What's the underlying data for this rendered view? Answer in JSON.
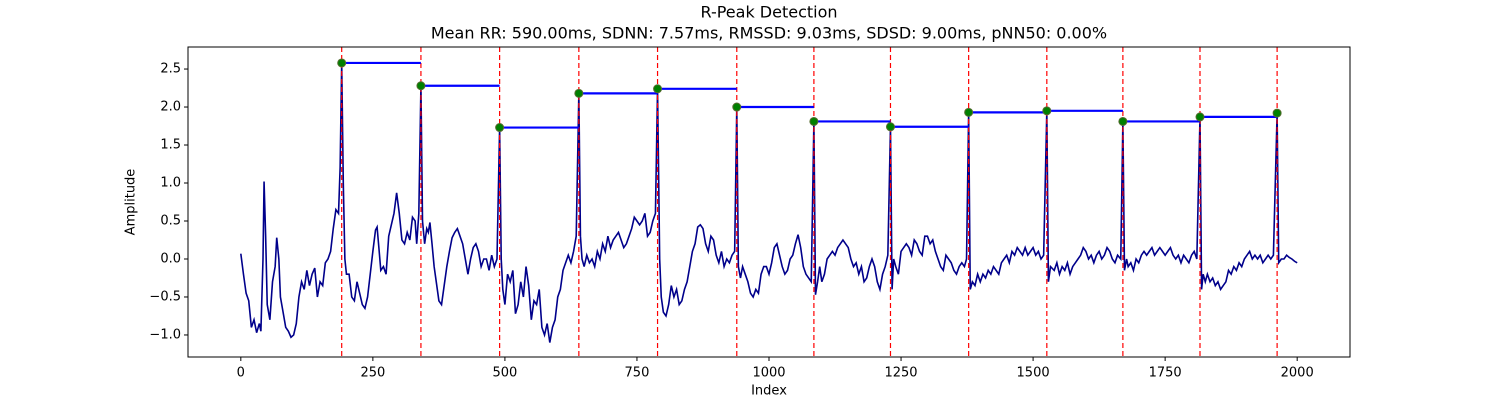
{
  "chart_data": {
    "type": "line",
    "title": "R-Peak Detection",
    "subtitle": "Mean RR: 590.00ms, SDNN: 7.57ms, RMSSD: 9.03ms, SDSD: 9.00ms, pNN50: 0.00%",
    "x_label": "Index",
    "y_label": "Amplitude",
    "xlim": [
      -100,
      2100
    ],
    "ylim": [
      -1.29,
      2.79
    ],
    "xticks": [
      0,
      250,
      500,
      750,
      1000,
      1250,
      1500,
      1750,
      2000
    ],
    "yticks": [
      {
        "value": -1,
        "label": "−1.0"
      },
      {
        "value": -0.5,
        "label": "−0.5"
      },
      {
        "value": 0,
        "label": "0.0"
      },
      0.5,
      {
        "value": 1,
        "label": "1.0"
      },
      1.5,
      {
        "value": 2,
        "label": "2.0"
      },
      2.5
    ],
    "signal": {
      "color": "#00008b",
      "x": [
        0,
        5,
        10,
        15,
        20,
        25,
        30,
        35,
        38,
        42,
        44,
        47,
        50,
        55,
        60,
        65,
        68,
        72,
        75,
        80,
        85,
        90,
        95,
        100,
        105,
        110,
        115,
        120,
        125,
        130,
        135,
        140,
        145,
        150,
        155,
        160,
        165,
        170,
        175,
        180,
        185,
        188,
        191,
        194,
        197,
        200,
        205,
        210,
        215,
        220,
        225,
        230,
        235,
        240,
        245,
        250,
        255,
        258,
        262,
        265,
        270,
        275,
        280,
        285,
        290,
        295,
        300,
        305,
        310,
        315,
        320,
        325,
        330,
        333,
        337,
        341,
        344,
        348,
        352,
        355,
        358,
        362,
        366,
        370,
        375,
        380,
        385,
        390,
        395,
        400,
        405,
        410,
        415,
        420,
        425,
        430,
        435,
        440,
        445,
        450,
        455,
        460,
        465,
        470,
        475,
        480,
        485,
        490,
        493,
        496,
        500,
        505,
        510,
        515,
        520,
        525,
        530,
        535,
        540,
        545,
        550,
        555,
        560,
        565,
        570,
        575,
        580,
        585,
        590,
        595,
        600,
        605,
        610,
        615,
        620,
        625,
        630,
        635,
        640,
        643,
        646,
        650,
        655,
        660,
        665,
        670,
        675,
        680,
        685,
        690,
        695,
        700,
        705,
        710,
        715,
        720,
        725,
        730,
        735,
        740,
        745,
        750,
        755,
        760,
        765,
        770,
        775,
        780,
        785,
        789,
        793,
        796,
        800,
        805,
        810,
        815,
        820,
        825,
        830,
        835,
        840,
        845,
        850,
        855,
        860,
        865,
        870,
        875,
        880,
        885,
        890,
        895,
        900,
        905,
        910,
        915,
        920,
        925,
        930,
        935,
        939,
        942,
        946,
        950,
        955,
        960,
        965,
        970,
        975,
        980,
        985,
        990,
        995,
        1000,
        1005,
        1010,
        1015,
        1020,
        1025,
        1030,
        1035,
        1040,
        1045,
        1050,
        1055,
        1060,
        1065,
        1070,
        1075,
        1080,
        1085,
        1088,
        1092,
        1096,
        1100,
        1105,
        1110,
        1115,
        1120,
        1125,
        1130,
        1135,
        1140,
        1145,
        1150,
        1155,
        1160,
        1165,
        1170,
        1175,
        1180,
        1185,
        1190,
        1195,
        1200,
        1205,
        1210,
        1215,
        1220,
        1225,
        1230,
        1233,
        1236,
        1240,
        1245,
        1250,
        1255,
        1260,
        1265,
        1270,
        1275,
        1280,
        1285,
        1290,
        1295,
        1300,
        1305,
        1310,
        1315,
        1320,
        1325,
        1330,
        1335,
        1340,
        1345,
        1350,
        1355,
        1360,
        1365,
        1370,
        1374,
        1378,
        1381,
        1385,
        1390,
        1395,
        1400,
        1405,
        1410,
        1415,
        1420,
        1425,
        1430,
        1435,
        1440,
        1445,
        1450,
        1455,
        1460,
        1465,
        1470,
        1475,
        1480,
        1485,
        1490,
        1495,
        1500,
        1505,
        1510,
        1515,
        1520,
        1526,
        1529,
        1533,
        1540,
        1545,
        1550,
        1555,
        1560,
        1565,
        1570,
        1575,
        1580,
        1585,
        1590,
        1595,
        1600,
        1605,
        1610,
        1615,
        1620,
        1625,
        1630,
        1635,
        1640,
        1645,
        1650,
        1655,
        1660,
        1666,
        1670,
        1673,
        1677,
        1680,
        1685,
        1690,
        1695,
        1700,
        1705,
        1710,
        1715,
        1720,
        1725,
        1730,
        1735,
        1740,
        1745,
        1750,
        1755,
        1760,
        1765,
        1770,
        1775,
        1780,
        1785,
        1790,
        1795,
        1800,
        1805,
        1810,
        1816,
        1819,
        1822,
        1826,
        1830,
        1835,
        1840,
        1845,
        1850,
        1855,
        1860,
        1865,
        1870,
        1875,
        1880,
        1885,
        1890,
        1895,
        1900,
        1905,
        1910,
        1915,
        1920,
        1925,
        1930,
        1935,
        1940,
        1945,
        1950,
        1955,
        1962,
        1965,
        1970,
        1975,
        1980,
        1985,
        1990,
        1995,
        2000
      ],
      "values": [
        0.07,
        -0.2,
        -0.45,
        -0.55,
        -0.9,
        -0.8,
        -0.97,
        -0.85,
        -0.95,
        0.0,
        1.02,
        0.3,
        -0.6,
        -0.8,
        -0.3,
        -0.1,
        0.28,
        0.0,
        -0.5,
        -0.7,
        -0.9,
        -0.95,
        -1.03,
        -1.0,
        -0.85,
        -0.5,
        -0.3,
        -0.4,
        -0.15,
        -0.35,
        -0.2,
        -0.12,
        -0.5,
        -0.3,
        -0.35,
        -0.05,
        0.0,
        0.1,
        0.4,
        0.65,
        0.6,
        1.2,
        2.58,
        1.0,
        0.0,
        -0.2,
        -0.2,
        -0.5,
        -0.55,
        -0.3,
        -0.45,
        -0.6,
        -0.65,
        -0.5,
        -0.2,
        0.1,
        0.38,
        0.42,
        0.1,
        -0.15,
        -0.1,
        -0.2,
        0.3,
        0.45,
        0.6,
        0.87,
        0.6,
        0.25,
        0.2,
        0.35,
        0.25,
        0.55,
        0.5,
        0.2,
        0.6,
        2.28,
        0.5,
        0.2,
        0.4,
        0.35,
        0.48,
        0.2,
        -0.1,
        -0.3,
        -0.55,
        -0.6,
        -0.35,
        -0.1,
        0.1,
        0.28,
        0.35,
        0.4,
        0.3,
        0.2,
        0.0,
        -0.2,
        0.0,
        0.15,
        0.2,
        0.1,
        -0.1,
        0.0,
        0.0,
        -0.15,
        0.05,
        -0.1,
        0.0,
        1.73,
        0.0,
        -0.4,
        -0.6,
        -0.2,
        -0.3,
        -0.15,
        -0.72,
        -0.6,
        -0.3,
        -0.5,
        -0.1,
        -0.35,
        -0.8,
        -0.55,
        -0.6,
        -0.4,
        -0.9,
        -1.0,
        -0.85,
        -1.1,
        -0.9,
        -0.8,
        -0.5,
        -0.4,
        -0.15,
        -0.05,
        0.05,
        -0.05,
        0.1,
        0.3,
        2.18,
        0.3,
        0.0,
        -0.1,
        0.05,
        -0.05,
        0.0,
        -0.1,
        0.1,
        0.0,
        0.2,
        0.1,
        0.3,
        0.15,
        0.25,
        0.3,
        0.35,
        0.25,
        0.15,
        0.2,
        0.3,
        0.4,
        0.55,
        0.5,
        0.45,
        0.5,
        0.6,
        0.3,
        0.35,
        0.5,
        0.6,
        2.24,
        0.0,
        -0.5,
        -0.7,
        -0.75,
        -0.6,
        -0.35,
        -0.5,
        -0.4,
        -0.6,
        -0.55,
        -0.4,
        -0.3,
        -0.1,
        0.1,
        0.2,
        0.42,
        0.45,
        0.4,
        0.2,
        0.1,
        0.3,
        0.25,
        0.05,
        -0.05,
        0.1,
        -0.1,
        0.0,
        -0.05,
        0.05,
        0.1,
        2.0,
        -0.1,
        -0.25,
        -0.1,
        -0.2,
        -0.3,
        -0.45,
        -0.5,
        -0.4,
        -0.45,
        -0.2,
        -0.1,
        -0.1,
        -0.2,
        -0.05,
        0.15,
        0.2,
        0.05,
        -0.1,
        -0.2,
        -0.15,
        0.0,
        0.05,
        0.2,
        0.32,
        0.15,
        -0.1,
        -0.2,
        -0.25,
        -0.3,
        1.81,
        -0.47,
        -0.3,
        -0.1,
        -0.3,
        -0.2,
        0.0,
        0.05,
        0.1,
        0.05,
        0.15,
        0.2,
        0.25,
        0.2,
        0.15,
        0.0,
        -0.1,
        -0.05,
        -0.2,
        -0.1,
        -0.3,
        -0.25,
        -0.1,
        0.0,
        -0.1,
        -0.3,
        -0.4,
        -0.2,
        -0.1,
        0.05,
        1.74,
        -0.4,
        0.0,
        -0.1,
        -0.2,
        0.1,
        0.15,
        0.2,
        0.15,
        0.05,
        0.25,
        0.2,
        0.1,
        0.05,
        0.3,
        0.3,
        0.2,
        0.25,
        0.1,
        0.0,
        -0.1,
        -0.15,
        0.05,
        0.0,
        -0.05,
        -0.15,
        -0.2,
        -0.1,
        -0.05,
        -0.1,
        0.0,
        1.93,
        -0.4,
        -0.3,
        -0.35,
        -0.2,
        -0.3,
        -0.2,
        -0.25,
        -0.15,
        -0.2,
        -0.1,
        -0.15,
        -0.2,
        -0.05,
        0.0,
        0.05,
        -0.05,
        0.1,
        0.05,
        0.15,
        0.1,
        0.05,
        0.15,
        0.05,
        0.1,
        0.15,
        0.05,
        0.1,
        0.0,
        0.05,
        1.95,
        -0.3,
        -0.1,
        -0.15,
        -0.05,
        -0.2,
        -0.1,
        -0.15,
        -0.05,
        -0.2,
        -0.1,
        -0.05,
        0.0,
        0.05,
        0.15,
        0.1,
        0.0,
        0.05,
        -0.05,
        0.05,
        0.1,
        0.0,
        0.05,
        0.15,
        0.1,
        0.0,
        -0.05,
        0.05,
        0.0,
        1.81,
        -0.15,
        0.0,
        -0.1,
        -0.05,
        -0.15,
        0.0,
        -0.05,
        0.05,
        0.1,
        0.05,
        0.1,
        0.15,
        0.05,
        0.1,
        0.15,
        0.1,
        0.05,
        0.1,
        0.15,
        0.05,
        0.0,
        0.05,
        -0.05,
        0.05,
        0.0,
        -0.05,
        0.05,
        0.1,
        0.0,
        1.87,
        -0.4,
        -0.2,
        -0.3,
        -0.2,
        -0.3,
        -0.25,
        -0.35,
        -0.3,
        -0.4,
        -0.35,
        -0.3,
        -0.15,
        -0.2,
        -0.1,
        -0.15,
        -0.05,
        -0.1,
        0.0,
        0.05,
        0.1,
        0.0,
        0.05,
        0.0,
        0.05,
        -0.05,
        0.0,
        0.05,
        0.0,
        0.05,
        1.92,
        -0.05,
        0.0,
        0.0,
        0.05,
        0.02,
        0.0,
        -0.03,
        -0.05
      ]
    },
    "peaks": {
      "color": "#008000",
      "edge_color": "#556b2f",
      "line_color": "#ff0000",
      "rr_color": "#0000ff",
      "x": [
        191,
        341,
        490,
        640,
        789,
        939,
        1085,
        1230,
        1378,
        1526,
        1670,
        1816,
        1962
      ],
      "values": [
        2.58,
        2.28,
        1.73,
        2.18,
        2.24,
        2.0,
        1.81,
        1.74,
        1.93,
        1.95,
        1.81,
        1.87,
        1.92
      ]
    }
  }
}
